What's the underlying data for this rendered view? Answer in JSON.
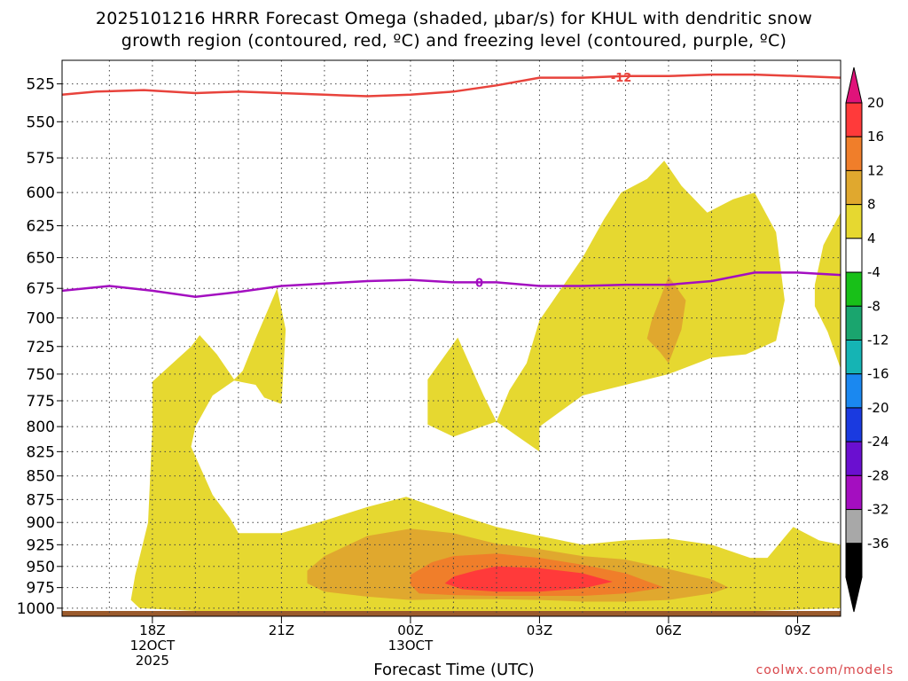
{
  "title_line1": "2025101216 HRRR Forecast Omega (shaded, μbar/s) for KHUL with dendritic snow",
  "title_line2": "growth region (contoured, red, ºC) and freezing level (contoured, purple, ºC)",
  "credit": "coolwx.com/models",
  "chart_data": {
    "type": "contour",
    "title": "2025101216 HRRR Forecast Omega (shaded, μbar/s) for KHUL with dendritic snow growth region (contoured, red, ºC) and freezing level (contoured, purple, ºC)",
    "xlabel": "Forecast Time (UTC)",
    "ylabel": "",
    "x_range_hours_utc": [
      15.9,
      34.0
    ],
    "y_range": [
      1010,
      510
    ],
    "y_scale": "log",
    "grid": true,
    "y_ticks": [
      525,
      550,
      575,
      600,
      625,
      650,
      675,
      700,
      725,
      750,
      775,
      800,
      825,
      850,
      875,
      900,
      925,
      950,
      975,
      1000
    ],
    "x_ticks": [
      {
        "h": 18,
        "line1": "18Z",
        "line2": "12OCT",
        "line3": "2025"
      },
      {
        "h": 21,
        "line1": "21Z",
        "line2": "",
        "line3": ""
      },
      {
        "h": 24,
        "line1": "00Z",
        "line2": "13OCT",
        "line3": ""
      },
      {
        "h": 27,
        "line1": "03Z",
        "line2": "",
        "line3": ""
      },
      {
        "h": 30,
        "line1": "06Z",
        "line2": "",
        "line3": ""
      },
      {
        "h": 33,
        "line1": "09Z",
        "line2": "",
        "line3": ""
      }
    ],
    "colorbar": [
      {
        "label": "20",
        "color": "#ff3a3a"
      },
      {
        "label": "16",
        "color": "#f07e2a"
      },
      {
        "label": "12",
        "color": "#e0a82e"
      },
      {
        "label": "8",
        "color": "#e6d830"
      },
      {
        "label": "4",
        "color": "#ffffff"
      },
      {
        "label": "-4",
        "color": "#18c018"
      },
      {
        "label": "-8",
        "color": "#1aa56e"
      },
      {
        "label": "-12",
        "color": "#15b4b4"
      },
      {
        "label": "-16",
        "color": "#1a88f0"
      },
      {
        "label": "-20",
        "color": "#1a3ae0"
      },
      {
        "label": "-24",
        "color": "#6a0fd0"
      },
      {
        "label": "-28",
        "color": "#a40ec0"
      },
      {
        "label": "-32",
        "color": "#a8a8a8"
      },
      {
        "label": "-36",
        "color": "#000000"
      }
    ],
    "colorbar_top_color": "#e0137a",
    "colorbar_bottom_color": "#000000",
    "lines": [
      {
        "name": "-12",
        "color": "#e8433c",
        "x": [
          15.9,
          16.7,
          17.8,
          19.0,
          20.0,
          21.0,
          22.0,
          23.0,
          24.0,
          25.0,
          26.0,
          27.0,
          28.0,
          29.0,
          30.0,
          31.0,
          32.0,
          33.0,
          34.0
        ],
        "y": [
          532,
          530,
          529,
          531,
          530,
          531,
          532,
          533,
          532,
          530,
          526,
          521,
          521,
          520,
          520,
          519,
          519,
          520,
          521
        ]
      },
      {
        "name": "0",
        "color": "#a30ec0",
        "x": [
          15.9,
          17.0,
          18.0,
          19.0,
          20.0,
          21.0,
          22.0,
          23.0,
          24.0,
          25.0,
          26.0,
          27.0,
          28.0,
          29.0,
          30.0,
          31.0,
          32.0,
          33.0,
          34.0
        ],
        "y": [
          677,
          673,
          677,
          682,
          678,
          673,
          671,
          669,
          668,
          670,
          670,
          673,
          673,
          672,
          672,
          669,
          662,
          662,
          664
        ]
      }
    ],
    "shaded_regions": [
      {
        "level": "4-8",
        "color": "#e6d830",
        "label": "omega 4-8",
        "points": [
          [
            17.5,
            990
          ],
          [
            17.6,
            960
          ],
          [
            17.9,
            900
          ],
          [
            18.0,
            800
          ],
          [
            18.0,
            757
          ],
          [
            18.9,
            725
          ],
          [
            19.1,
            715
          ],
          [
            19.5,
            732
          ],
          [
            19.9,
            755
          ],
          [
            20.1,
            747
          ],
          [
            20.4,
            718
          ],
          [
            20.9,
            675
          ],
          [
            21.1,
            710
          ],
          [
            21.0,
            778
          ],
          [
            20.6,
            772
          ],
          [
            20.4,
            760
          ],
          [
            19.9,
            756
          ],
          [
            19.4,
            770
          ],
          [
            19.0,
            800
          ],
          [
            18.9,
            820
          ],
          [
            19.4,
            870
          ],
          [
            19.8,
            895
          ],
          [
            20.0,
            912
          ],
          [
            21.0,
            912
          ],
          [
            22.0,
            898
          ],
          [
            23.0,
            883
          ],
          [
            23.9,
            872
          ],
          [
            24.2,
            877
          ],
          [
            25.0,
            890
          ],
          [
            26.0,
            905
          ],
          [
            27.0,
            915
          ],
          [
            28.0,
            925
          ],
          [
            29.0,
            920
          ],
          [
            30.0,
            918
          ],
          [
            31.0,
            925
          ],
          [
            31.9,
            940
          ],
          [
            32.3,
            940
          ],
          [
            32.9,
            905
          ],
          [
            33.5,
            920
          ],
          [
            34.0,
            925
          ],
          [
            34.0,
            1000
          ],
          [
            30.0,
            1007
          ],
          [
            25.0,
            1008
          ],
          [
            20.0,
            1006
          ],
          [
            17.7,
            1000
          ]
        ]
      },
      {
        "level": "4-8",
        "color": "#e6d830",
        "label": "omega 4-8 mid",
        "points": [
          [
            24.4,
            798
          ],
          [
            24.4,
            755
          ],
          [
            25.1,
            717
          ],
          [
            25.5,
            752
          ],
          [
            25.7,
            770
          ],
          [
            26.0,
            795
          ],
          [
            25.0,
            810
          ]
        ]
      },
      {
        "level": "4-8",
        "color": "#e6d830",
        "label": "omega 4-8 upper",
        "points": [
          [
            26.0,
            795
          ],
          [
            26.3,
            765
          ],
          [
            26.7,
            740
          ],
          [
            27.0,
            702
          ],
          [
            28.0,
            650
          ],
          [
            28.5,
            620
          ],
          [
            28.9,
            600
          ],
          [
            29.5,
            590
          ],
          [
            29.9,
            577
          ],
          [
            30.3,
            595
          ],
          [
            30.9,
            615
          ],
          [
            31.5,
            605
          ],
          [
            32.0,
            600
          ],
          [
            32.5,
            630
          ],
          [
            32.7,
            685
          ],
          [
            32.5,
            720
          ],
          [
            31.8,
            732
          ],
          [
            31.0,
            735
          ],
          [
            30.0,
            750
          ],
          [
            29.0,
            760
          ],
          [
            28.0,
            770
          ],
          [
            27.0,
            800
          ],
          [
            27.0,
            825
          ],
          [
            26.5,
            810
          ]
        ]
      },
      {
        "level": "4-8",
        "color": "#e6d830",
        "label": "omega 4-8 edge",
        "points": [
          [
            33.4,
            672
          ],
          [
            33.6,
            640
          ],
          [
            34.0,
            615
          ],
          [
            34.0,
            745
          ],
          [
            33.7,
            712
          ],
          [
            33.4,
            690
          ]
        ]
      },
      {
        "level": "8-12",
        "color": "#e0a82e",
        "label": "omega 8-12",
        "points": [
          [
            21.6,
            955
          ],
          [
            22.0,
            938
          ],
          [
            23.0,
            915
          ],
          [
            24.0,
            907
          ],
          [
            25.0,
            912
          ],
          [
            26.0,
            924
          ],
          [
            27.0,
            930
          ],
          [
            28.0,
            938
          ],
          [
            29.0,
            942
          ],
          [
            30.0,
            953
          ],
          [
            31.0,
            965
          ],
          [
            31.4,
            975
          ],
          [
            31.0,
            982
          ],
          [
            30.0,
            990
          ],
          [
            29.0,
            992
          ],
          [
            28.0,
            992
          ],
          [
            27.0,
            990
          ],
          [
            26.0,
            989
          ],
          [
            25.0,
            989
          ],
          [
            24.0,
            990
          ],
          [
            23.0,
            986
          ],
          [
            22.0,
            980
          ],
          [
            21.6,
            970
          ]
        ]
      },
      {
        "level": "8-12",
        "color": "#e0a82e",
        "label": "omega 8-12 upper",
        "points": [
          [
            29.6,
            703
          ],
          [
            30.0,
            665
          ],
          [
            30.4,
            685
          ],
          [
            30.3,
            710
          ],
          [
            30.0,
            740
          ],
          [
            29.8,
            730
          ],
          [
            29.5,
            718
          ]
        ]
      },
      {
        "level": "12-16",
        "color": "#f07e2a",
        "label": "omega 12-16",
        "points": [
          [
            24.0,
            960
          ],
          [
            24.5,
            945
          ],
          [
            25.0,
            938
          ],
          [
            26.0,
            935
          ],
          [
            27.0,
            940
          ],
          [
            28.0,
            948
          ],
          [
            29.0,
            958
          ],
          [
            29.9,
            975
          ],
          [
            29.0,
            982
          ],
          [
            28.0,
            985
          ],
          [
            27.0,
            985
          ],
          [
            26.0,
            985
          ],
          [
            25.0,
            984
          ],
          [
            24.2,
            982
          ],
          [
            24.0,
            972
          ]
        ]
      },
      {
        "level": "16-20",
        "color": "#ff3a3a",
        "label": "omega 16-20",
        "points": [
          [
            24.8,
            970
          ],
          [
            25.0,
            962
          ],
          [
            25.5,
            955
          ],
          [
            26.0,
            950
          ],
          [
            27.0,
            952
          ],
          [
            28.0,
            958
          ],
          [
            28.7,
            968
          ],
          [
            28.0,
            976
          ],
          [
            27.0,
            980
          ],
          [
            26.0,
            980
          ],
          [
            25.2,
            977
          ]
        ]
      }
    ]
  }
}
